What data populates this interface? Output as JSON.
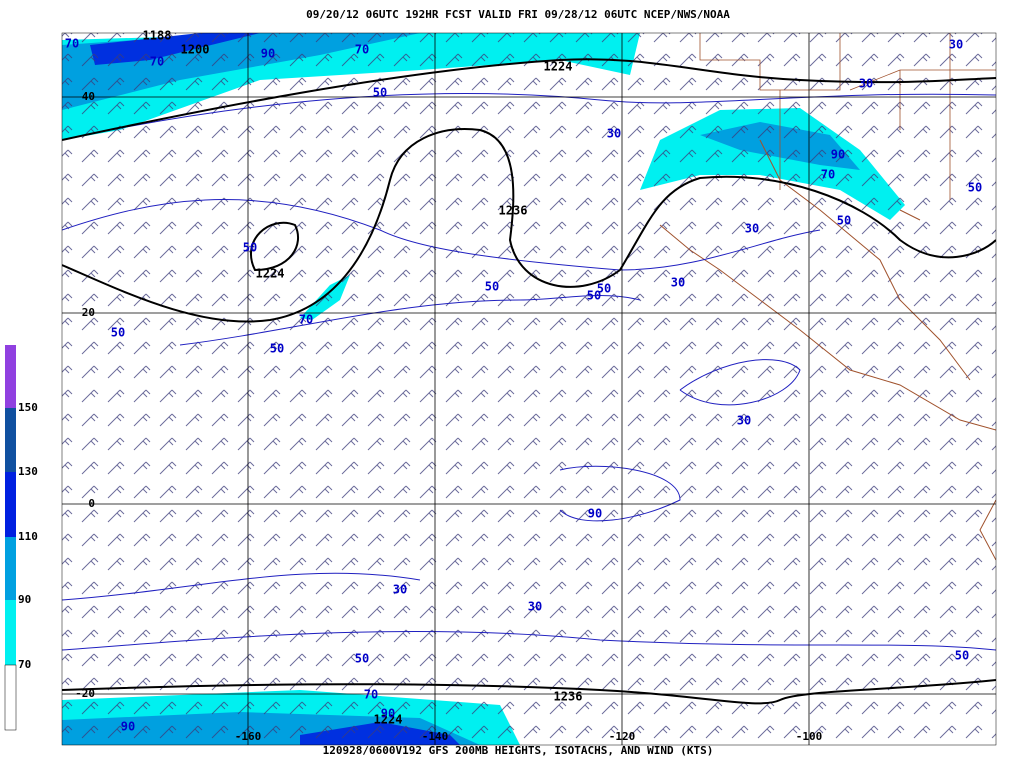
{
  "header": {
    "title": "09/20/12 06UTC  192HR  FCST VALID FRI 09/28/12 06UTC  NCEP/NWS/NOAA"
  },
  "footer": {
    "caption": "120928/0600V192 GFS 200MB HEIGHTS, ISOTACHS, AND WIND (KTS)"
  },
  "legend": {
    "labels": [
      "150",
      "130",
      "110",
      "90",
      "70"
    ]
  },
  "latitude_labels": [
    "40",
    "20",
    "0",
    "-20"
  ],
  "longitude_labels": [
    "-160",
    "-140",
    "-120",
    "-100"
  ],
  "height_labels": [
    "1188",
    "1200",
    "1224",
    "1236",
    "1224",
    "1236",
    "1224"
  ],
  "isotach_labels": [
    "70",
    "70",
    "90",
    "70",
    "50",
    "30",
    "90",
    "70",
    "50",
    "30",
    "30",
    "50",
    "30",
    "30",
    "50",
    "50",
    "50",
    "50",
    "70",
    "50",
    "50",
    "30",
    "90",
    "30",
    "30",
    "50",
    "50",
    "70",
    "90",
    "90"
  ]
}
